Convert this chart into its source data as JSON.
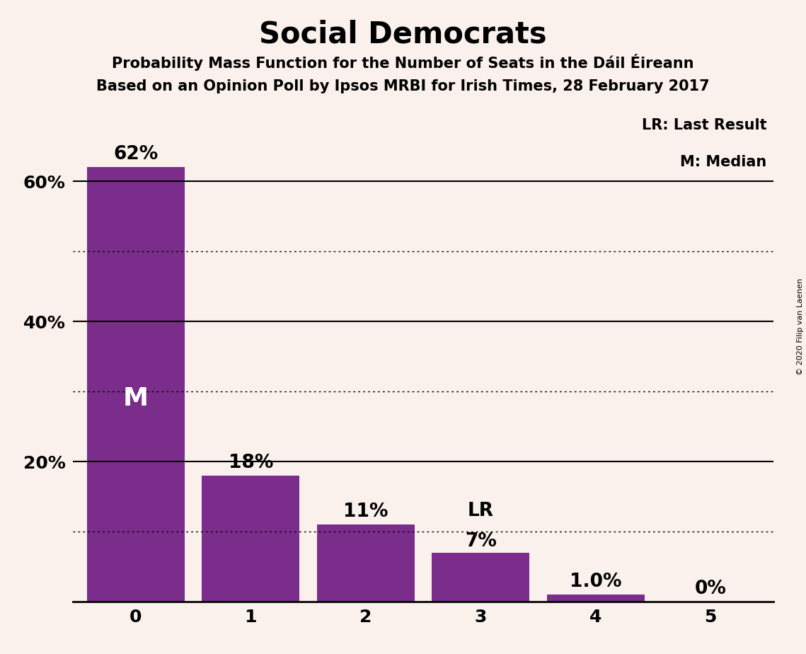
{
  "title": "Social Democrats",
  "subtitle1": "Probability Mass Function for the Number of Seats in the Dáil Éireann",
  "subtitle2": "Based on an Opinion Poll by Ipsos MRBI for Irish Times, 28 February 2017",
  "categories": [
    0,
    1,
    2,
    3,
    4,
    5
  ],
  "values": [
    0.62,
    0.18,
    0.11,
    0.07,
    0.01,
    0.0
  ],
  "bar_labels": [
    "62%",
    "18%",
    "11%",
    "7%",
    "1.0%",
    "0%"
  ],
  "bar_color": "#7B2D8B",
  "background_color": "#FAF0EC",
  "median_bar": 0,
  "last_result_bar": 3,
  "median_label": "M",
  "lr_label": "LR",
  "legend_lr": "LR: Last Result",
  "legend_m": "M: Median",
  "copyright": "© 2020 Filip van Laenen",
  "ylim": [
    0,
    0.7
  ],
  "yticks": [
    0.0,
    0.2,
    0.4,
    0.6
  ],
  "ytick_labels": [
    "",
    "20%",
    "40%",
    "60%"
  ],
  "solid_lines": [
    0.2,
    0.4,
    0.6
  ],
  "dotted_lines": [
    0.1,
    0.3,
    0.5
  ],
  "title_fontsize": 30,
  "subtitle_fontsize": 15,
  "tick_fontsize": 18,
  "legend_fontsize": 15,
  "bar_label_fontsize": 19,
  "median_label_fontsize": 26
}
